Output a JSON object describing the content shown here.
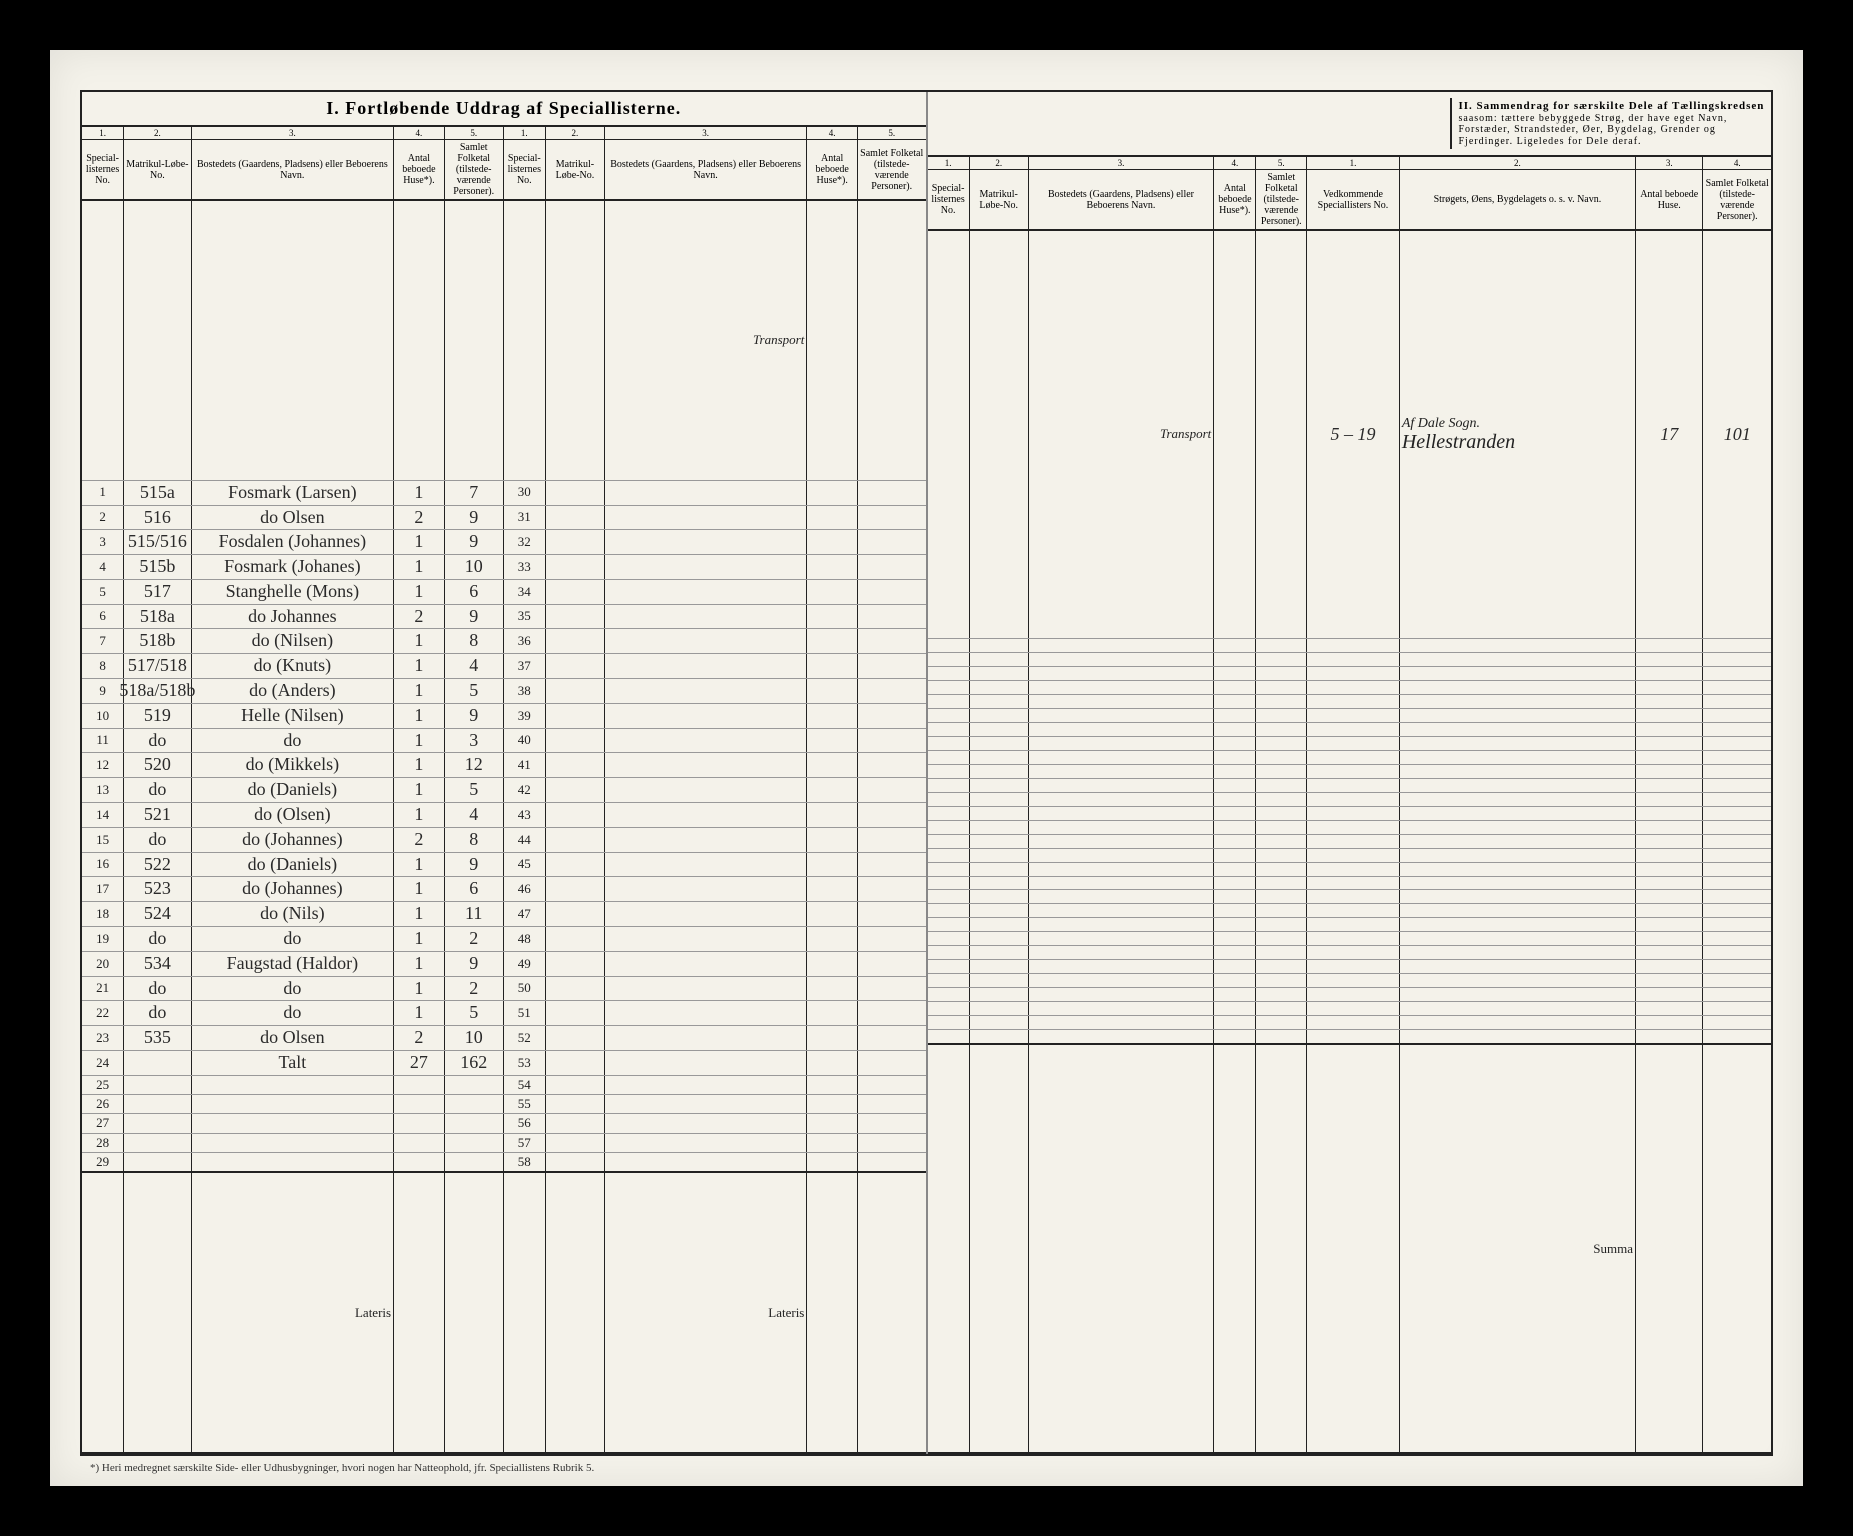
{
  "title_section1": "I.  Fortløbende Uddrag af Speciallisterne.",
  "title_section2_heading": "II.  Sammendrag for særskilte Dele af Tællingskredsen",
  "title_section2_sub": "saasom: tættere bebyggede Strøg, der have eget Navn, Forstæder, Strandsteder, Øer, Bygdelag, Grender og Fjerdinger. Ligeledes for Dele deraf.",
  "col_numbers": [
    "1.",
    "2.",
    "3.",
    "4.",
    "5."
  ],
  "headers": {
    "no": "Special-listernes No.",
    "mat": "Matrikul-Løbe-No.",
    "name": "Bostedets (Gaardens, Pladsens) eller Beboerens Navn.",
    "huse": "Antal beboede Huse*).",
    "pers": "Samlet Folketal (tilstede-værende Personer).",
    "s_no": "Vedkommende Speciallisters No.",
    "s_name": "Strøgets, Øens, Bygdelagets o. s. v. Navn.",
    "s_huse": "Antal beboede Huse.",
    "s_pers": "Samlet Folketal (tilstede-værende Personer)."
  },
  "transport": "Transport",
  "lateris": "Lateris",
  "summa": "Summa",
  "footnote": "*) Heri medregnet særskilte Side- eller Udhusbygninger, hvori nogen har Natteophold, jfr. Speciallistens Rubrik 5.",
  "rows_left": [
    {
      "n": "1",
      "mat": "515a",
      "name": "Fosmark (Larsen)",
      "h": "1",
      "p": "7",
      "n2": "30"
    },
    {
      "n": "2",
      "mat": "516",
      "name": "do     Olsen",
      "h": "2",
      "p": "9",
      "n2": "31"
    },
    {
      "n": "3",
      "mat": "515/516",
      "name": "Fosdalen (Johannes)",
      "h": "1",
      "p": "9",
      "n2": "32"
    },
    {
      "n": "4",
      "mat": "515b",
      "name": "Fosmark (Johanes)",
      "h": "1",
      "p": "10",
      "n2": "33"
    },
    {
      "n": "5",
      "mat": "517",
      "name": "Stanghelle (Mons)",
      "h": "1",
      "p": "6",
      "n2": "34"
    },
    {
      "n": "6",
      "mat": "518a",
      "name": "do    Johannes",
      "h": "2",
      "p": "9",
      "n2": "35"
    },
    {
      "n": "7",
      "mat": "518b",
      "name": "do   (Nilsen)",
      "h": "1",
      "p": "8",
      "n2": "36"
    },
    {
      "n": "8",
      "mat": "517/518",
      "name": "do   (Knuts)",
      "h": "1",
      "p": "4",
      "n2": "37"
    },
    {
      "n": "9",
      "mat": "518a/518b",
      "name": "do   (Anders)",
      "h": "1",
      "p": "5",
      "n2": "38"
    },
    {
      "n": "10",
      "mat": "519",
      "name": "Helle (Nilsen)",
      "h": "1",
      "p": "9",
      "n2": "39"
    },
    {
      "n": "11",
      "mat": "do",
      "name": "do",
      "h": "1",
      "p": "3",
      "n2": "40"
    },
    {
      "n": "12",
      "mat": "520",
      "name": "do   (Mikkels)",
      "h": "1",
      "p": "12",
      "n2": "41"
    },
    {
      "n": "13",
      "mat": "do",
      "name": "do   (Daniels)",
      "h": "1",
      "p": "5",
      "n2": "42"
    },
    {
      "n": "14",
      "mat": "521",
      "name": "do   (Olsen)",
      "h": "1",
      "p": "4",
      "n2": "43"
    },
    {
      "n": "15",
      "mat": "do",
      "name": "do   (Johannes)",
      "h": "2",
      "p": "8",
      "n2": "44"
    },
    {
      "n": "16",
      "mat": "522",
      "name": "do   (Daniels)",
      "h": "1",
      "p": "9",
      "n2": "45"
    },
    {
      "n": "17",
      "mat": "523",
      "name": "do   (Johannes)",
      "h": "1",
      "p": "6",
      "n2": "46"
    },
    {
      "n": "18",
      "mat": "524",
      "name": "do   (Nils)",
      "h": "1",
      "p": "11",
      "n2": "47"
    },
    {
      "n": "19",
      "mat": "do",
      "name": "do",
      "h": "1",
      "p": "2",
      "n2": "48"
    },
    {
      "n": "20",
      "mat": "534",
      "name": "Faugstad (Haldor)",
      "h": "1",
      "p": "9",
      "n2": "49"
    },
    {
      "n": "21",
      "mat": "do",
      "name": "do",
      "h": "1",
      "p": "2",
      "n2": "50"
    },
    {
      "n": "22",
      "mat": "do",
      "name": "do",
      "h": "1",
      "p": "5",
      "n2": "51"
    },
    {
      "n": "23",
      "mat": "535",
      "name": "do    Olsen",
      "h": "2",
      "p": "10",
      "n2": "52"
    },
    {
      "n": "24",
      "mat": "",
      "name": "Talt",
      "h": "27",
      "p": "162",
      "n2": "53"
    },
    {
      "n": "25",
      "mat": "",
      "name": "",
      "h": "",
      "p": "",
      "n2": "54"
    },
    {
      "n": "26",
      "mat": "",
      "name": "",
      "h": "",
      "p": "",
      "n2": "55"
    },
    {
      "n": "27",
      "mat": "",
      "name": "",
      "h": "",
      "p": "",
      "n2": "56"
    },
    {
      "n": "28",
      "mat": "",
      "name": "",
      "h": "",
      "p": "",
      "n2": "57"
    },
    {
      "n": "29",
      "mat": "",
      "name": "",
      "h": "",
      "p": "",
      "n2": "58"
    }
  ],
  "rows_right_section2": [
    {
      "no": "5 – 19",
      "name_sup": "Af Dale Sogn.",
      "name": "Hellestranden",
      "h": "17",
      "p": "101"
    }
  ],
  "colors": {
    "paper": "#f4f2ea",
    "ink": "#222222",
    "rule": "#999999",
    "hw": "#2a2a2a"
  }
}
